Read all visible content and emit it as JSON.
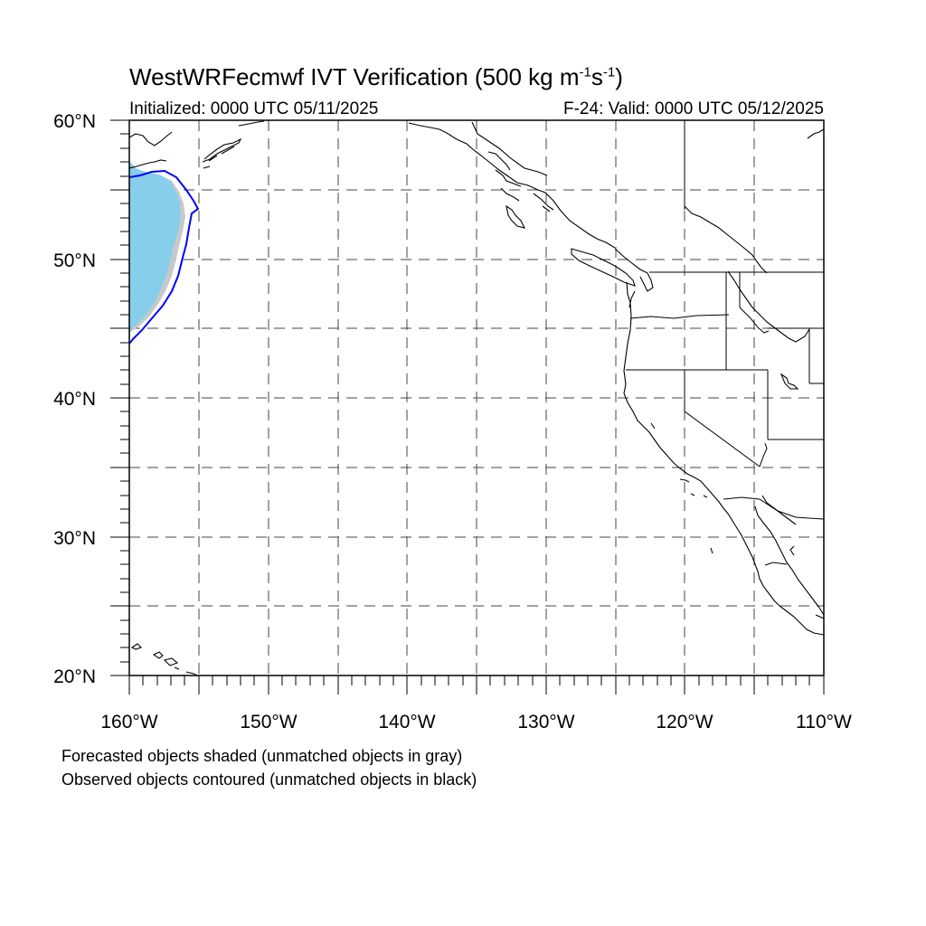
{
  "title": {
    "main": "WestWRFecmwf IVT Verification (500 kg m",
    "exp1": "-1",
    "mid": "s",
    "exp2": "-1",
    "end": ")"
  },
  "initialized": "Initialized: 0000 UTC 05/11/2025",
  "valid": "F-24: Valid: 0000 UTC 05/12/2025",
  "lat_labels": [
    "60°N",
    "50°N",
    "40°N",
    "30°N",
    "20°N"
  ],
  "lon_labels": [
    "160°W",
    "150°W",
    "140°W",
    "130°W",
    "120°W",
    "110°W"
  ],
  "notes": {
    "forecast": "Forecasted objects shaded (unmatched objects in gray)",
    "observed": "Observed objects contoured (unmatched objects in black)"
  },
  "map": {
    "lon_range": [
      -160,
      -110
    ],
    "lat_range": [
      20,
      60
    ],
    "grid_spacing_deg": 5,
    "gridlines": "dashed"
  },
  "colors": {
    "forecast_fill": "#87ceeb",
    "forecast_unmatched_fill": "#c8c8c8",
    "observed_contour": "#0000ff",
    "coastline": "#000000"
  }
}
